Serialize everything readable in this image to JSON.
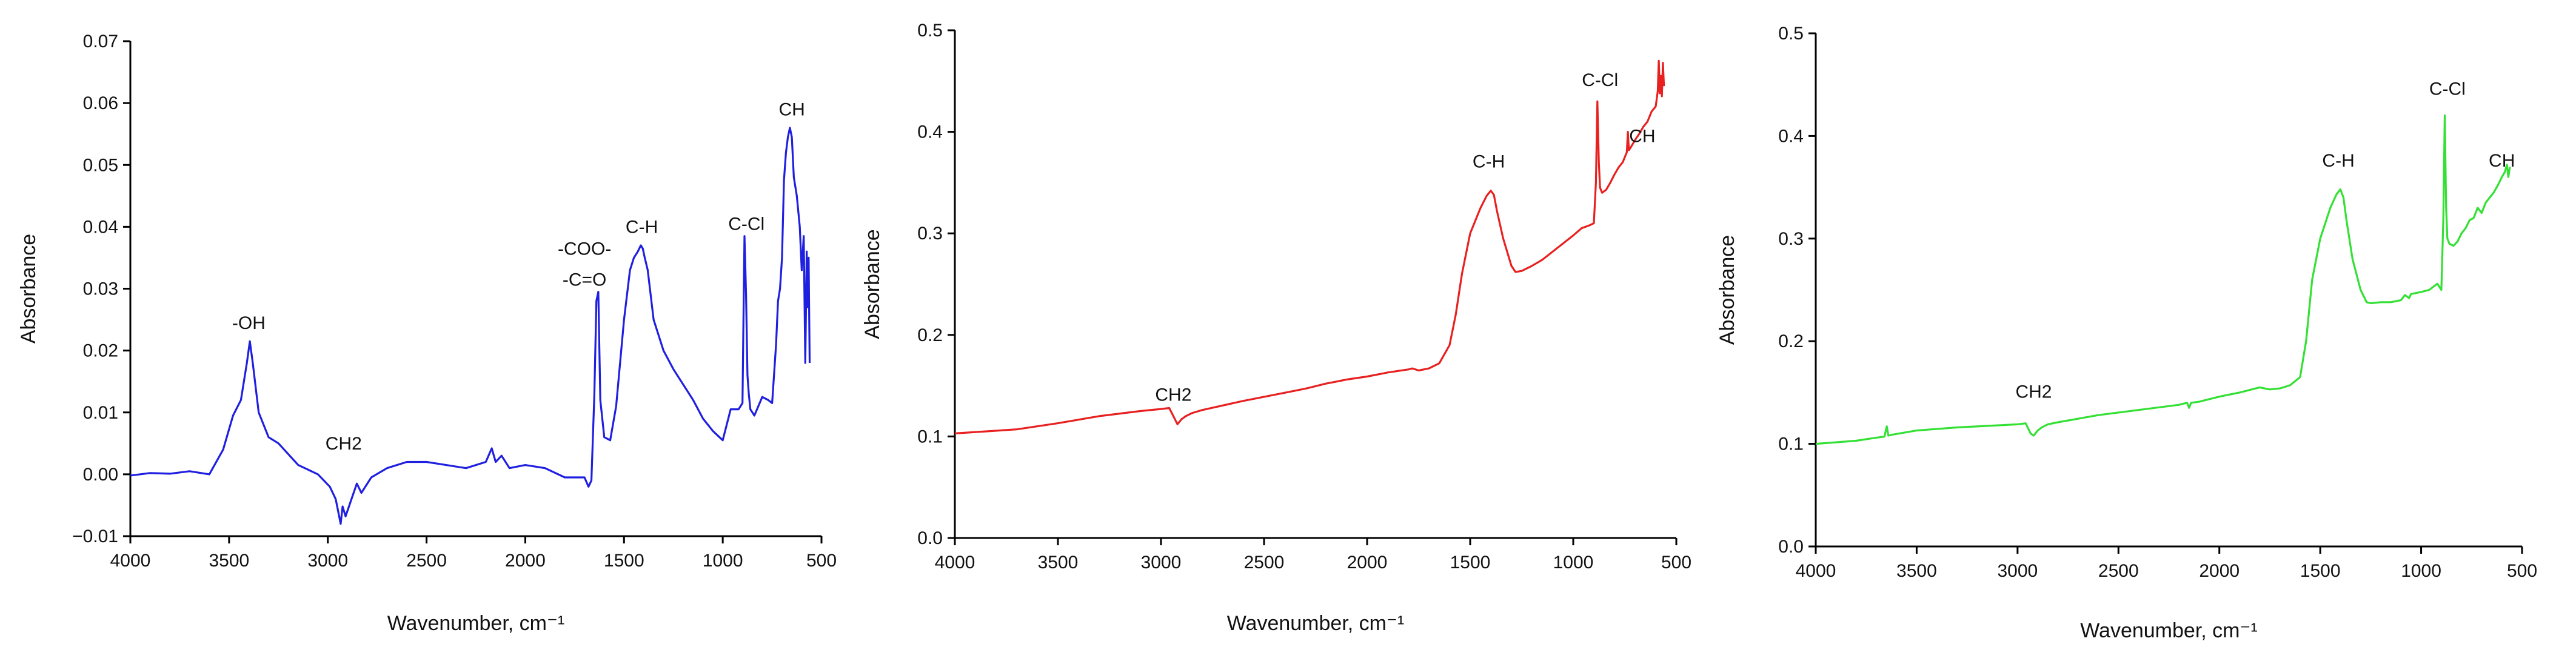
{
  "chart_data": [
    {
      "type": "line",
      "xlabel": "Wavenumber, cm⁻¹",
      "ylabel": "Absorbance",
      "xlim": [
        4000,
        500
      ],
      "ylim": [
        -0.01,
        0.07
      ],
      "xticks": [
        "4000",
        "3500",
        "3000",
        "2500",
        "2000",
        "1500",
        "1000",
        "500"
      ],
      "yticks": [
        "−0.01",
        "0.00",
        "0.01",
        "0.02",
        "0.03",
        "0.04",
        "0.05",
        "0.06",
        "0.07"
      ],
      "color": "#1f1fe0",
      "series": [
        {
          "x": [
            4000,
            3900,
            3800,
            3700,
            3600,
            3530,
            3480,
            3440,
            3410,
            3395,
            3380,
            3350,
            3300,
            3250,
            3150,
            3050,
            2990,
            2960,
            2935,
            2925,
            2910,
            2880,
            2853,
            2830,
            2780,
            2700,
            2600,
            2500,
            2400,
            2300,
            2200,
            2170,
            2150,
            2120,
            2080,
            2000,
            1900,
            1800,
            1700,
            1680,
            1665,
            1650,
            1640,
            1630,
            1620,
            1600,
            1570,
            1540,
            1500,
            1470,
            1450,
            1430,
            1415,
            1405,
            1395,
            1380,
            1350,
            1300,
            1250,
            1200,
            1150,
            1100,
            1050,
            1000,
            960,
            920,
            900,
            895,
            890,
            882,
            875,
            868,
            860,
            840,
            800,
            770,
            750,
            730,
            720,
            710,
            700,
            690,
            680,
            670,
            660,
            650,
            640,
            625,
            610,
            600,
            590,
            582,
            575,
            570,
            565,
            560
          ],
          "y": [
            -0.0002,
            0.0002,
            0.0001,
            0.0005,
            0.0,
            0.004,
            0.0095,
            0.012,
            0.018,
            0.0215,
            0.018,
            0.01,
            0.006,
            0.005,
            0.0015,
            0.0,
            -0.002,
            -0.004,
            -0.008,
            -0.0052,
            -0.0068,
            -0.004,
            -0.0015,
            -0.003,
            -0.0005,
            0.001,
            0.002,
            0.002,
            0.0015,
            0.001,
            0.002,
            0.0042,
            0.002,
            0.003,
            0.001,
            0.0015,
            0.001,
            -0.0005,
            -0.0005,
            -0.002,
            -0.001,
            0.013,
            0.028,
            0.0295,
            0.012,
            0.006,
            0.0055,
            0.011,
            0.025,
            0.033,
            0.035,
            0.036,
            0.037,
            0.0365,
            0.035,
            0.033,
            0.025,
            0.02,
            0.017,
            0.0145,
            0.012,
            0.009,
            0.007,
            0.0055,
            0.0105,
            0.0105,
            0.0115,
            0.025,
            0.0385,
            0.029,
            0.016,
            0.013,
            0.0105,
            0.0095,
            0.0125,
            0.012,
            0.0115,
            0.021,
            0.028,
            0.03,
            0.035,
            0.0475,
            0.052,
            0.0545,
            0.056,
            0.0545,
            0.048,
            0.045,
            0.04,
            0.033,
            0.0385,
            0.018,
            0.036,
            0.027,
            0.035,
            0.018
          ]
        }
      ],
      "annotations": [
        {
          "text": "-OH",
          "x": 3400,
          "y": 0.0235
        },
        {
          "text": "CH2",
          "x": 2920,
          "y": 0.004
        },
        {
          "text": "-COO-",
          "x": 1700,
          "y": 0.0355
        },
        {
          "text": "-C=O",
          "x": 1700,
          "y": 0.0305
        },
        {
          "text": "C-H",
          "x": 1410,
          "y": 0.039
        },
        {
          "text": "C-Cl",
          "x": 880,
          "y": 0.0395
        },
        {
          "text": "CH",
          "x": 650,
          "y": 0.058
        }
      ]
    },
    {
      "type": "line",
      "xlabel": "Wavenumber, cm⁻¹",
      "ylabel": "Absorbance",
      "xlim": [
        4000,
        500
      ],
      "ylim": [
        0,
        0.5
      ],
      "xticks": [
        "4000",
        "3500",
        "3000",
        "2500",
        "2000",
        "1500",
        "1000",
        "500"
      ],
      "yticks": [
        "0.0",
        "0.1",
        "0.2",
        "0.3",
        "0.4",
        "0.5"
      ],
      "color": "#e82020",
      "series": [
        {
          "x": [
            4000,
            3700,
            3500,
            3300,
            3100,
            3000,
            2960,
            2935,
            2920,
            2900,
            2880,
            2850,
            2800,
            2600,
            2400,
            2300,
            2200,
            2150,
            2100,
            2000,
            1900,
            1800,
            1780,
            1750,
            1700,
            1650,
            1600,
            1570,
            1540,
            1500,
            1450,
            1420,
            1400,
            1385,
            1370,
            1340,
            1300,
            1280,
            1250,
            1200,
            1150,
            1100,
            1050,
            1000,
            960,
            920,
            900,
            890,
            883,
            876,
            870,
            860,
            840,
            820,
            800,
            780,
            760,
            740,
            735,
            730,
            720,
            700,
            680,
            660,
            640,
            620,
            600,
            590,
            585,
            580,
            575,
            570,
            565,
            560
          ],
          "y": [
            0.103,
            0.107,
            0.113,
            0.12,
            0.125,
            0.127,
            0.128,
            0.118,
            0.112,
            0.117,
            0.12,
            0.123,
            0.126,
            0.135,
            0.143,
            0.147,
            0.152,
            0.154,
            0.156,
            0.159,
            0.163,
            0.166,
            0.167,
            0.165,
            0.167,
            0.172,
            0.19,
            0.22,
            0.26,
            0.3,
            0.325,
            0.337,
            0.342,
            0.338,
            0.322,
            0.295,
            0.268,
            0.262,
            0.263,
            0.268,
            0.274,
            0.282,
            0.29,
            0.298,
            0.305,
            0.308,
            0.31,
            0.35,
            0.43,
            0.37,
            0.345,
            0.34,
            0.343,
            0.35,
            0.358,
            0.365,
            0.37,
            0.38,
            0.4,
            0.382,
            0.385,
            0.392,
            0.398,
            0.405,
            0.41,
            0.42,
            0.425,
            0.44,
            0.47,
            0.438,
            0.455,
            0.435,
            0.468,
            0.445
          ]
        }
      ],
      "annotations": [
        {
          "text": "CH2",
          "x": 2940,
          "y": 0.135
        },
        {
          "text": "C-H",
          "x": 1410,
          "y": 0.365
        },
        {
          "text": "C-Cl",
          "x": 870,
          "y": 0.445
        },
        {
          "text": "CH",
          "x": 665,
          "y": 0.39
        }
      ]
    },
    {
      "type": "line",
      "xlabel": "Wavenumber, cm⁻¹",
      "ylabel": "Absorbance",
      "xlim": [
        4000,
        500
      ],
      "ylim": [
        0,
        0.5
      ],
      "xticks": [
        "4000",
        "3500",
        "3000",
        "2500",
        "2000",
        "1500",
        "1000",
        "500"
      ],
      "yticks": [
        "0.0",
        "0.1",
        "0.2",
        "0.3",
        "0.4",
        "0.5"
      ],
      "color": "#33e033",
      "series": [
        {
          "x": [
            4000,
            3800,
            3700,
            3660,
            3648,
            3640,
            3620,
            3500,
            3300,
            3100,
            3000,
            2960,
            2935,
            2920,
            2900,
            2880,
            2850,
            2800,
            2600,
            2400,
            2200,
            2160,
            2150,
            2140,
            2100,
            2000,
            1900,
            1800,
            1750,
            1700,
            1650,
            1600,
            1570,
            1540,
            1500,
            1450,
            1420,
            1400,
            1385,
            1370,
            1340,
            1300,
            1270,
            1250,
            1200,
            1150,
            1100,
            1080,
            1060,
            1050,
            1000,
            960,
            920,
            900,
            890,
            883,
            876,
            870,
            860,
            840,
            820,
            800,
            780,
            760,
            740,
            720,
            700,
            680,
            660,
            640,
            620,
            600,
            585,
            575,
            568,
            560
          ],
          "y": [
            0.1,
            0.103,
            0.106,
            0.107,
            0.117,
            0.108,
            0.109,
            0.113,
            0.116,
            0.118,
            0.119,
            0.12,
            0.11,
            0.108,
            0.113,
            0.116,
            0.119,
            0.121,
            0.128,
            0.133,
            0.138,
            0.14,
            0.135,
            0.14,
            0.141,
            0.146,
            0.15,
            0.155,
            0.153,
            0.154,
            0.157,
            0.165,
            0.2,
            0.26,
            0.3,
            0.33,
            0.343,
            0.348,
            0.34,
            0.318,
            0.28,
            0.25,
            0.238,
            0.237,
            0.238,
            0.238,
            0.24,
            0.245,
            0.242,
            0.246,
            0.248,
            0.25,
            0.256,
            0.25,
            0.32,
            0.42,
            0.33,
            0.3,
            0.295,
            0.293,
            0.297,
            0.305,
            0.31,
            0.318,
            0.32,
            0.33,
            0.325,
            0.335,
            0.34,
            0.345,
            0.352,
            0.36,
            0.365,
            0.372,
            0.36,
            0.37
          ]
        }
      ],
      "annotations": [
        {
          "text": "CH2",
          "x": 2920,
          "y": 0.145
        },
        {
          "text": "C-H",
          "x": 1410,
          "y": 0.37
        },
        {
          "text": "C-Cl",
          "x": 870,
          "y": 0.44
        },
        {
          "text": "CH",
          "x": 600,
          "y": 0.37
        }
      ]
    }
  ]
}
